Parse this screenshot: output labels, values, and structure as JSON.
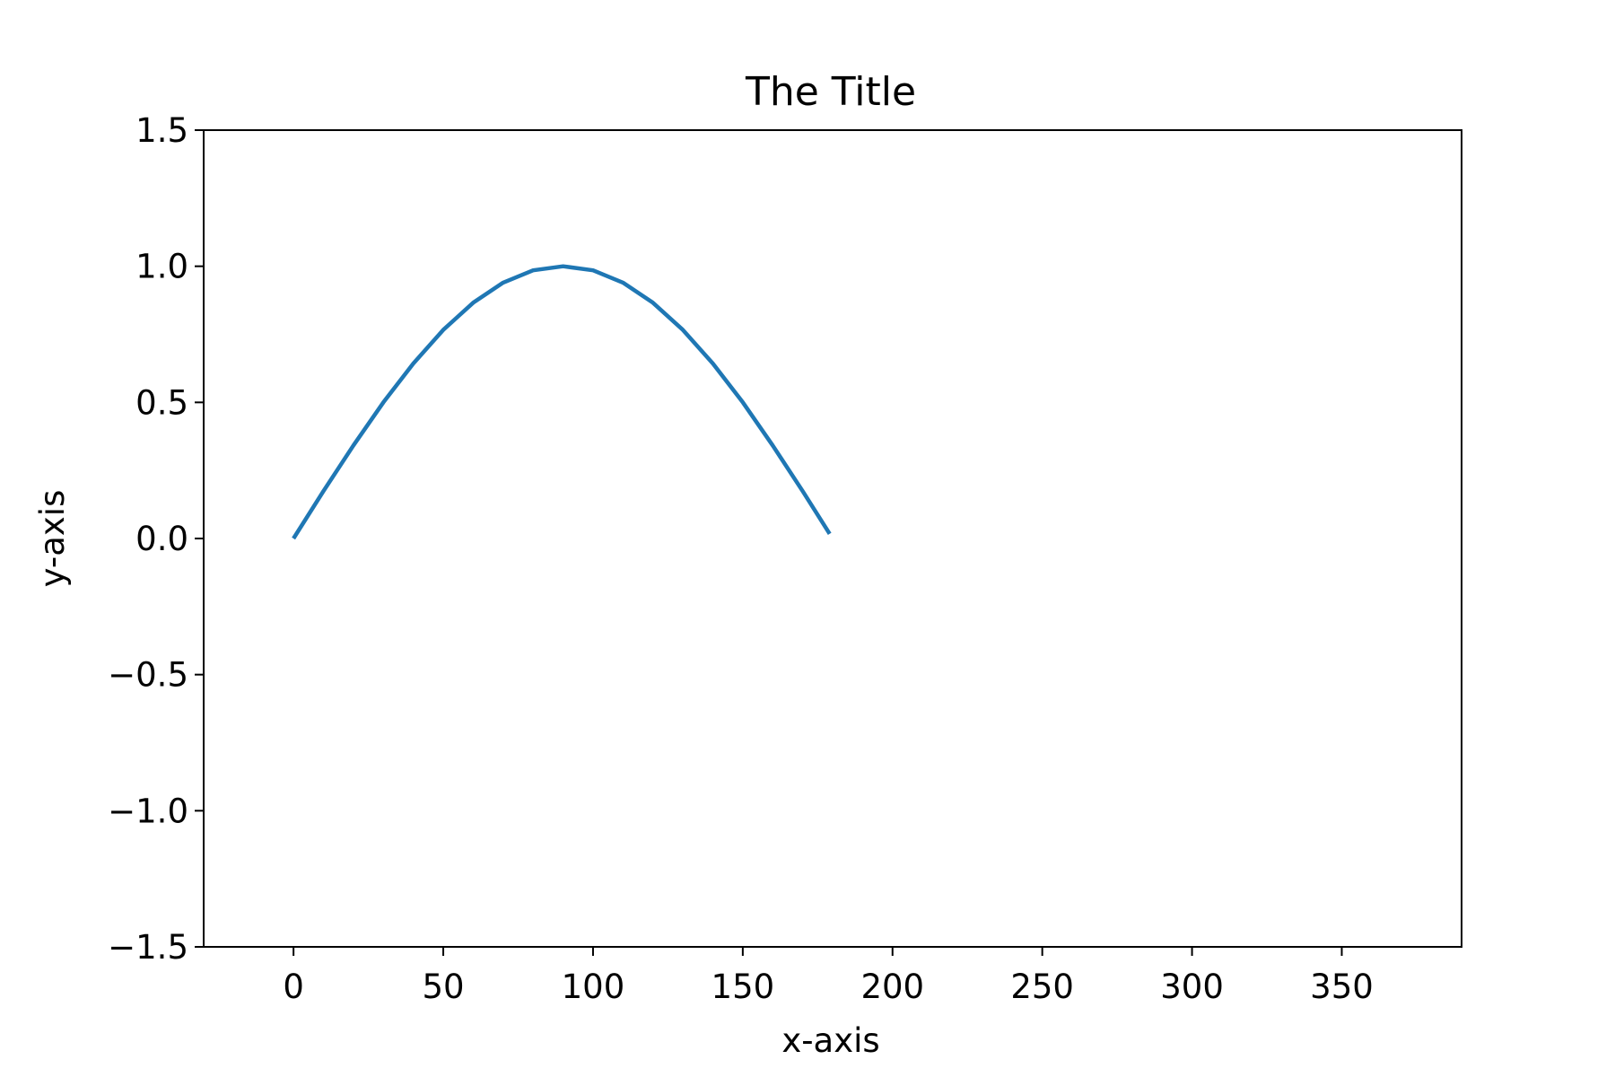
{
  "chart_data": {
    "type": "line",
    "title": "The Title",
    "xlabel": "x-axis",
    "ylabel": "y-axis",
    "xlim": [
      -30,
      390
    ],
    "ylim": [
      -1.5,
      1.5
    ],
    "x_ticks": [
      0,
      50,
      100,
      150,
      200,
      250,
      300,
      350
    ],
    "x_tick_labels": [
      "0",
      "50",
      "100",
      "150",
      "200",
      "250",
      "300",
      "350"
    ],
    "y_ticks": [
      1.5,
      1.0,
      0.5,
      0.0,
      -0.5,
      -1.0,
      -1.5
    ],
    "y_tick_labels": [
      "1.5",
      "1.0",
      "0.5",
      "0.0",
      "−0.5",
      "−1.0",
      "−1.5"
    ],
    "grid": false,
    "legend": "none",
    "series": [
      {
        "color": "#1f77b4",
        "x": [
          0,
          10,
          20,
          30,
          40,
          50,
          60,
          70,
          80,
          90,
          100,
          110,
          120,
          130,
          140,
          150,
          160,
          170,
          179
        ],
        "y": [
          0.0,
          0.174,
          0.342,
          0.5,
          0.643,
          0.766,
          0.866,
          0.94,
          0.985,
          1.0,
          0.985,
          0.94,
          0.866,
          0.766,
          0.643,
          0.5,
          0.342,
          0.174,
          0.017
        ]
      }
    ]
  }
}
